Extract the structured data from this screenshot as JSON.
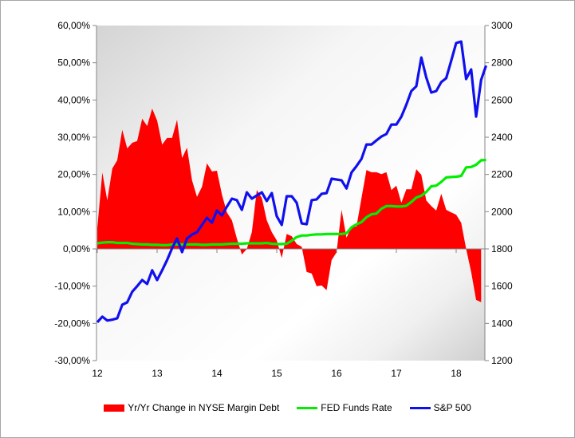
{
  "chart_data": {
    "type": "area+line",
    "title": "",
    "x_tick_labels": [
      "12",
      "13",
      "14",
      "15",
      "16",
      "17",
      "18"
    ],
    "x_start_year": 2012,
    "x_step": "monthly",
    "y_left": {
      "range": [
        -30,
        60
      ],
      "ticks": [
        "-30,00%",
        "-20,00%",
        "-10,00%",
        "0,00%",
        "10,00%",
        "20,00%",
        "30,00%",
        "40,00%",
        "50,00%",
        "60,00%"
      ]
    },
    "y_right": {
      "range": [
        1200,
        3000
      ],
      "ticks": [
        "1200",
        "1400",
        "1600",
        "1800",
        "2000",
        "2200",
        "2400",
        "2600",
        "2800",
        "3000"
      ]
    },
    "legend_position": "bottom",
    "series": [
      {
        "name": "Yr/Yr Change in NYSE Margin Debt",
        "type": "area",
        "axis": "left",
        "color": "#ff0000",
        "values": [
          5.6,
          20.5,
          13,
          21.6,
          23.8,
          32,
          27,
          28.5,
          29,
          35,
          33,
          37.7,
          34.5,
          28,
          29.8,
          29.8,
          34.7,
          24.4,
          27.2,
          18.4,
          14,
          16.7,
          23,
          20.8,
          21,
          14.6,
          9.8,
          7.7,
          2.8,
          -1.5,
          0,
          4.5,
          15.8,
          13.7,
          7.7,
          4.5,
          2.3,
          -2.4,
          4,
          3.4,
          1.3,
          0.6,
          -6.2,
          -6.6,
          -10,
          -9.8,
          -11.1,
          -3,
          -0.9,
          10.5,
          3,
          6,
          6,
          13.7,
          21.2,
          20.6,
          20.6,
          20.1,
          20.6,
          15.8,
          17,
          12.4,
          16,
          16,
          21.4,
          19.9,
          13,
          11.5,
          10.3,
          14.8,
          10.5,
          9.8,
          9.2,
          7,
          0,
          -6.2,
          -13.7,
          -14.3
        ]
      },
      {
        "name": "FED Funds Rate",
        "type": "line",
        "axis": "left",
        "color": "#00ee00",
        "values": [
          1.5,
          1.7,
          1.8,
          1.8,
          1.6,
          1.6,
          1.6,
          1.4,
          1.3,
          1.2,
          1.2,
          1.1,
          1.1,
          1.0,
          1.0,
          1.2,
          1.2,
          1.2,
          1.2,
          1.2,
          1.2,
          1.1,
          1.1,
          1.2,
          1.2,
          1.2,
          1.3,
          1.4,
          1.4,
          1.4,
          1.5,
          1.5,
          1.5,
          1.5,
          1.6,
          1.4,
          1.3,
          1.3,
          1.4,
          2.2,
          3.2,
          3.6,
          3.6,
          3.8,
          3.9,
          3.9,
          4.0,
          4.0,
          4.0,
          4.0,
          4.2,
          5.8,
          6.6,
          7.2,
          8.5,
          9.3,
          9.5,
          10.8,
          11.5,
          11.5,
          11.4,
          11.4,
          11.6,
          12.6,
          13.8,
          14.3,
          15.3,
          16.8,
          17.0,
          18.0,
          19.2,
          19.3,
          19.4,
          19.6,
          21.9,
          22.0,
          22.6,
          23.8,
          23.9
        ]
      },
      {
        "name": "S&P 500",
        "type": "line",
        "axis": "right",
        "color": "#1010ee",
        "values": [
          1406,
          1436,
          1415,
          1420,
          1427,
          1500,
          1513,
          1570,
          1600,
          1633,
          1612,
          1685,
          1633,
          1685,
          1740,
          1804,
          1856,
          1783,
          1856,
          1877,
          1890,
          1929,
          1967,
          1941,
          2006,
          1980,
          2027,
          2070,
          2062,
          2010,
          2104,
          2070,
          2087,
          2104,
          2057,
          2100,
          1976,
          1929,
          2083,
          2083,
          2048,
          1937,
          1933,
          2062,
          2066,
          2096,
          2100,
          2177,
          2173,
          2168,
          2125,
          2211,
          2245,
          2284,
          2361,
          2361,
          2383,
          2404,
          2417,
          2468,
          2468,
          2511,
          2575,
          2648,
          2674,
          2828,
          2721,
          2640,
          2648,
          2696,
          2717,
          2811,
          2906,
          2914,
          2713,
          2764,
          2511,
          2708,
          2785
        ]
      }
    ]
  },
  "legend": {
    "items": [
      "Yr/Yr Change in NYSE Margin Debt",
      "FED Funds Rate",
      "S&P 500"
    ]
  }
}
